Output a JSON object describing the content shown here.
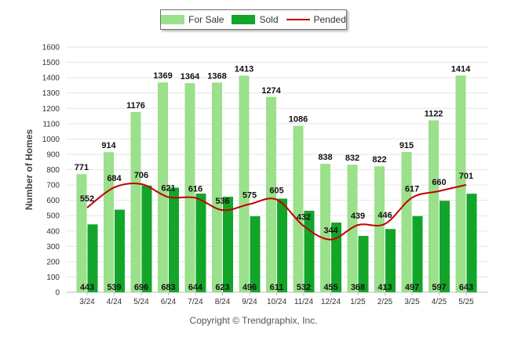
{
  "chart_data": {
    "type": "bar",
    "categories": [
      "3/24",
      "4/24",
      "5/24",
      "6/24",
      "7/24",
      "8/24",
      "9/24",
      "10/24",
      "11/24",
      "12/24",
      "1/25",
      "2/25",
      "3/25",
      "4/25",
      "5/25"
    ],
    "series": [
      {
        "name": "For Sale",
        "type": "bar",
        "color": "#9be08a",
        "values": [
          771,
          914,
          1176,
          1369,
          1364,
          1368,
          1413,
          1274,
          1086,
          838,
          832,
          822,
          915,
          1122,
          1414
        ]
      },
      {
        "name": "Sold",
        "type": "bar",
        "color": "#13a52a",
        "values": [
          443,
          539,
          696,
          683,
          644,
          623,
          496,
          611,
          532,
          455,
          368,
          413,
          497,
          597,
          643
        ]
      },
      {
        "name": "Pended",
        "type": "line",
        "color": "#c00000",
        "values": [
          552,
          684,
          706,
          621,
          616,
          536,
          575,
          605,
          432,
          344,
          439,
          446,
          617,
          660,
          701
        ]
      }
    ],
    "ylabel": "Number of Homes",
    "xlabel": "",
    "ylim": [
      0,
      1600
    ],
    "yticks": [
      0,
      100,
      200,
      300,
      400,
      500,
      600,
      700,
      800,
      900,
      1000,
      1100,
      1200,
      1300,
      1400,
      1500,
      1600
    ],
    "grid": true,
    "legend": "top-center"
  },
  "footer": {
    "copyright": "Copyright © Trendgraphix, Inc."
  }
}
